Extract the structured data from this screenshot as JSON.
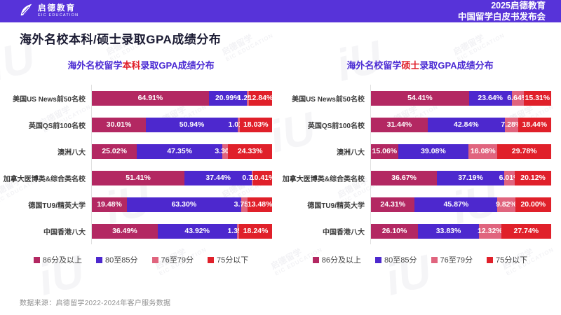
{
  "header": {
    "logo": {
      "icon": "eic-leaf-logo",
      "brand_cn": "启德教育",
      "brand_en": "EIC EDUCATION"
    },
    "event_line1": "2025启德教育",
    "event_line2": "中国留学白皮书发布会",
    "bg_color": "#5733D9"
  },
  "page_title": "海外名校本科/硕士录取GPA成绩分布",
  "watermark": {
    "text_cn": "启德留学",
    "text_en": "EIC EDUCATION",
    "logo_glyph": "iU"
  },
  "legend": [
    {
      "key": "segment-86-and-above",
      "label": "86分及以上",
      "color": "#B32862"
    },
    {
      "key": "segment-80-85",
      "label": "80至85分",
      "color": "#4D28CE"
    },
    {
      "key": "segment-76-79",
      "label": "76至79分",
      "color": "#E0647E"
    },
    {
      "key": "segment-below-75",
      "label": "75分以下",
      "color": "#E0202A"
    }
  ],
  "chart_data": [
    {
      "type": "bar",
      "orientation": "horizontal",
      "stacked": true,
      "title_parts": {
        "prefix": "海外名校留学",
        "highlight": "本科",
        "suffix": "录取GPA成绩分布"
      },
      "categories": [
        "美国US News前50名校",
        "英国QS前100名校",
        "澳洲八大",
        "加拿大医博类&综合类名校",
        "德国TU9/精英大学",
        "中国香港八大"
      ],
      "series": [
        {
          "name": "86分及以上",
          "color": "#B32862",
          "values": [
            64.91,
            30.01,
            25.02,
            51.41,
            19.48,
            36.49
          ]
        },
        {
          "name": "80至85分",
          "color": "#4D28CE",
          "values": [
            20.99,
            50.94,
            47.35,
            37.44,
            63.3,
            43.92
          ]
        },
        {
          "name": "76至79分",
          "color": "#E0647E",
          "values": [
            1.25,
            1.01,
            3.3,
            0.74,
            3.75,
            1.35
          ]
        },
        {
          "name": "75分以下",
          "color": "#E0202A",
          "values": [
            12.84,
            18.03,
            24.33,
            10.41,
            13.48,
            18.24
          ]
        }
      ],
      "xlim": [
        0,
        100
      ],
      "value_suffix": "%",
      "legend_position": "bottom",
      "grid": false
    },
    {
      "type": "bar",
      "orientation": "horizontal",
      "stacked": true,
      "title_parts": {
        "prefix": "海外名校留学",
        "highlight": "硕士",
        "suffix": "录取GPA成绩分布"
      },
      "categories": [
        "美国US News前50名校",
        "英国QS前100名校",
        "澳洲八大",
        "加拿大医博类&综合类名校",
        "德国TU9/精英大学",
        "中国香港八大"
      ],
      "series": [
        {
          "name": "86分及以上",
          "color": "#B32862",
          "values": [
            54.41,
            31.44,
            15.06,
            36.67,
            24.31,
            26.1
          ]
        },
        {
          "name": "80至85分",
          "color": "#4D28CE",
          "values": [
            23.64,
            42.84,
            39.08,
            37.19,
            45.87,
            33.83
          ]
        },
        {
          "name": "76至79分",
          "color": "#E0647E",
          "values": [
            6.64,
            7.28,
            16.08,
            6.01,
            9.82,
            12.32
          ]
        },
        {
          "name": "75分以下",
          "color": "#E0202A",
          "values": [
            15.31,
            18.44,
            29.78,
            20.12,
            20.0,
            27.74
          ]
        }
      ],
      "xlim": [
        0,
        100
      ],
      "value_suffix": "%",
      "legend_position": "bottom",
      "grid": false
    }
  ],
  "footer": {
    "source": "数据来源：启德留学2022-2024年客户服务数据"
  }
}
